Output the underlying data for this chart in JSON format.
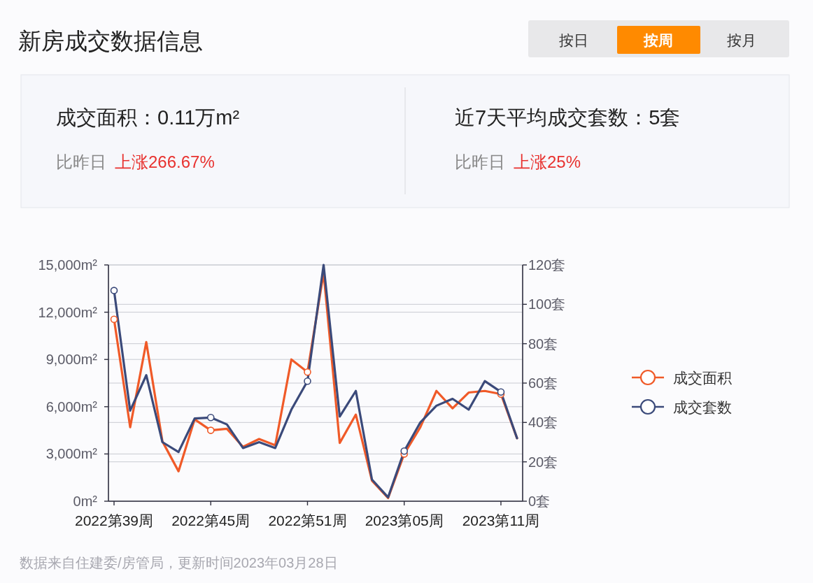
{
  "chart_data": [
    {
      "type": "other",
      "title": "新房成交数据信息",
      "annotations": [
        "按日",
        "按周",
        "按月",
        "成交面积：0.11万m²",
        "比昨日",
        "上涨266.67%",
        "近7天平均成交套数：5套",
        "比昨日",
        "上涨25%"
      ]
    },
    {
      "type": "line",
      "categories": [
        "2022第39周",
        null,
        null,
        null,
        null,
        null,
        "2022第45周",
        null,
        null,
        null,
        null,
        null,
        "2022第51周",
        null,
        null,
        null,
        null,
        null,
        "2023第05周",
        null,
        null,
        null,
        null,
        null,
        "2023第11周",
        null
      ],
      "series": [
        {
          "name": "成交面积",
          "color": "#f05a28",
          "values": [
            11550,
            4700,
            10100,
            3800,
            1900,
            5200,
            4500,
            4600,
            3450,
            3950,
            3550,
            9000,
            8200,
            14500,
            3700,
            5500,
            1300,
            200,
            3000,
            4700,
            7000,
            5900,
            6900,
            7000,
            6800,
            4000
          ]
        },
        {
          "name": "成交套数",
          "color": "#3b4a7a",
          "axis": "y2",
          "values": [
            107,
            46,
            64,
            30,
            25,
            42,
            42.5,
            39,
            27,
            30,
            27,
            46.5,
            61,
            120,
            43,
            56,
            11,
            2,
            25.5,
            40,
            48.5,
            52,
            46.5,
            61,
            55.5,
            32
          ]
        }
      ],
      "ylim": [
        0,
        15000
      ],
      "yticks": [
        {
          "value": 0,
          "label": "0m²"
        },
        {
          "value": 3000,
          "label": "3,000m²"
        },
        {
          "value": 6000,
          "label": "6,000m²"
        },
        {
          "value": 9000,
          "label": "9,000m²"
        },
        {
          "value": 12000,
          "label": "12,000m²"
        },
        {
          "value": 15000,
          "label": "15,000m²"
        }
      ],
      "y2lim": [
        0,
        120
      ],
      "y2ticks": [
        {
          "value": 0,
          "label": "0套"
        },
        {
          "value": 20,
          "label": "20套"
        },
        {
          "value": 40,
          "label": "40套"
        },
        {
          "value": 60,
          "label": "60套"
        },
        {
          "value": 80,
          "label": "80套"
        },
        {
          "value": 100,
          "label": "100套"
        },
        {
          "value": 120,
          "label": "120套"
        }
      ],
      "grid": "y",
      "legend": "right",
      "line_style": "solid",
      "annotations": [
        "数据来自住建委/房管局，更新时间2023年03月28日"
      ]
    }
  ]
}
